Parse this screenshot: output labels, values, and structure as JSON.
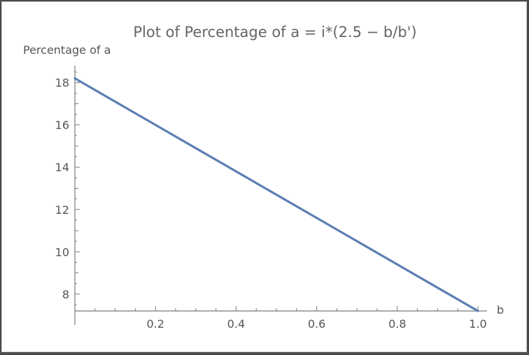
{
  "chart_data": {
    "type": "line",
    "title": "Plot of Percentage of a = i*(2.5 − b/b')",
    "xlabel": "b",
    "ylabel": "Percentage of a",
    "xlim": [
      0,
      1.0
    ],
    "ylim": [
      7.2,
      18.8
    ],
    "x_ticks": [
      0.2,
      0.4,
      0.6,
      0.8,
      1.0
    ],
    "x_tick_labels": [
      "0.2",
      "0.4",
      "0.6",
      "0.8",
      "1.0"
    ],
    "y_ticks": [
      8,
      10,
      12,
      14,
      16,
      18
    ],
    "y_tick_labels": [
      "8",
      "10",
      "12",
      "14",
      "16",
      "18"
    ],
    "grid": false,
    "series": [
      {
        "x": [
          0.0,
          1.0
        ],
        "y": [
          18.2,
          7.2
        ],
        "color": "#5b7fb3"
      }
    ],
    "axis_color": "#7a7a7a",
    "text_color": "#555555"
  }
}
